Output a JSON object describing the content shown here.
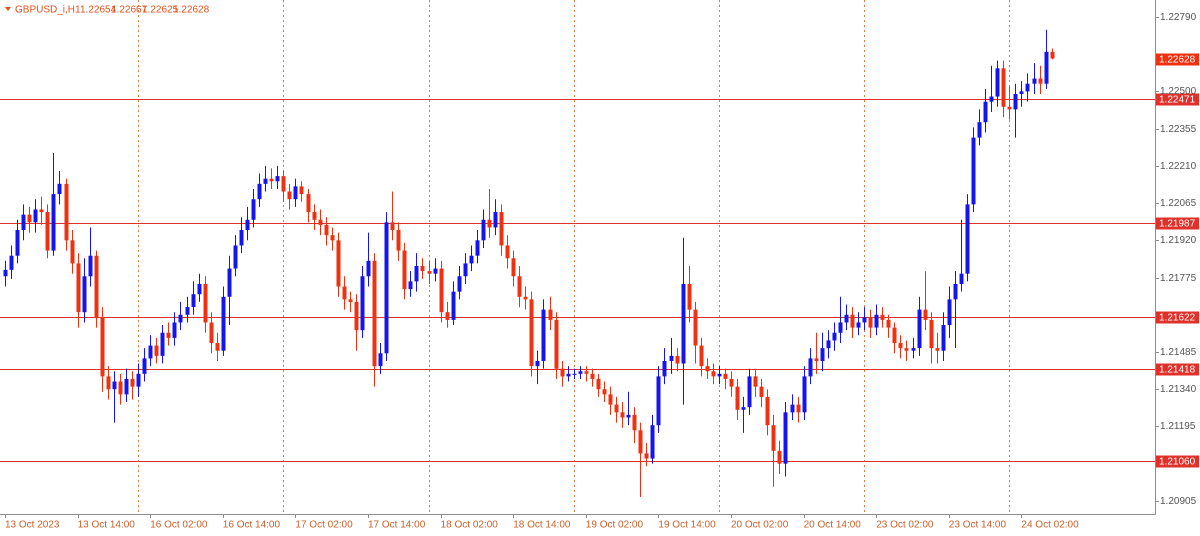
{
  "chart_data": {
    "type": "candlestick",
    "title": "GBPUSD_i,H1",
    "up_color": "#1414f0",
    "down_color": "#f0300f",
    "level_color": "#e0302a",
    "levels": [
      {
        "value": 1.22471,
        "label": "1.22471"
      },
      {
        "value": 1.21987,
        "label": "1.21987"
      },
      {
        "value": 1.21622,
        "label": "1.21622"
      },
      {
        "value": 1.21418,
        "label": "1.21418"
      },
      {
        "value": 1.2106,
        "label": "1.21060"
      }
    ],
    "ylim": [
      1.20854,
      1.22856
    ],
    "yticks": [
      {
        "value": 1.2279,
        "label": "1.22790"
      },
      {
        "value": 1.225,
        "label": "1.22500"
      },
      {
        "value": 1.22355,
        "label": "1.22355"
      },
      {
        "value": 1.2221,
        "label": "1.22210"
      },
      {
        "value": 1.22065,
        "label": "1.22065"
      },
      {
        "value": 1.2192,
        "label": "1.21920"
      },
      {
        "value": 1.21775,
        "label": "1.21775"
      },
      {
        "value": 1.21485,
        "label": "1.21485"
      },
      {
        "value": 1.2134,
        "label": "1.21340"
      },
      {
        "value": 1.21195,
        "label": "1.21195"
      },
      {
        "value": 1.20905,
        "label": "1.20905"
      }
    ],
    "categories": [
      "13 Oct 2023",
      null,
      null,
      null,
      null,
      null,
      null,
      null,
      null,
      null,
      null,
      null,
      "13 Oct 14:00",
      null,
      null,
      null,
      null,
      null,
      null,
      null,
      null,
      null,
      null,
      null,
      "16 Oct 02:00",
      null,
      null,
      null,
      null,
      null,
      null,
      null,
      null,
      null,
      null,
      null,
      "16 Oct 14:00",
      null,
      null,
      null,
      null,
      null,
      null,
      null,
      null,
      null,
      null,
      null,
      "17 Oct 02:00",
      null,
      null,
      null,
      null,
      null,
      null,
      null,
      null,
      null,
      null,
      null,
      "17 Oct 14:00",
      null,
      null,
      null,
      null,
      null,
      null,
      null,
      null,
      null,
      null,
      null,
      "18 Oct 02:00",
      null,
      null,
      null,
      null,
      null,
      null,
      null,
      null,
      null,
      null,
      null,
      "18 Oct 14:00",
      null,
      null,
      null,
      null,
      null,
      null,
      null,
      null,
      null,
      null,
      null,
      "19 Oct 02:00",
      null,
      null,
      null,
      null,
      null,
      null,
      null,
      null,
      null,
      null,
      null,
      "19 Oct 14:00",
      null,
      null,
      null,
      null,
      null,
      null,
      null,
      null,
      null,
      null,
      null,
      "20 Oct 02:00",
      null,
      null,
      null,
      null,
      null,
      null,
      null,
      null,
      null,
      null,
      null,
      "20 Oct 14:00",
      null,
      null,
      null,
      null,
      null,
      null,
      null,
      null,
      null,
      null,
      null,
      "23 Oct 02:00",
      null,
      null,
      null,
      null,
      null,
      null,
      null,
      null,
      null,
      null,
      null,
      "23 Oct 14:00",
      null,
      null,
      null,
      null,
      null,
      null,
      null,
      null,
      null,
      null,
      null,
      "24 Oct 02:00",
      null,
      null,
      null,
      null,
      null
    ],
    "open": [
      1.2178,
      1.21805,
      1.2186,
      1.2196,
      1.2202,
      1.2199,
      1.2204,
      1.2203,
      1.2188,
      1.221,
      1.2214,
      1.2192,
      1.2183,
      1.2164,
      1.2178,
      1.2186,
      1.2162,
      1.2139,
      1.2134,
      1.2137,
      1.2132,
      1.2138,
      1.2135,
      1.214,
      1.2146,
      1.2151,
      1.2147,
      1.2156,
      1.2154,
      1.216,
      1.2163,
      1.2166,
      1.2171,
      1.2175,
      1.216,
      1.2152,
      1.2149,
      1.217,
      1.2181,
      1.219,
      1.2196,
      1.22,
      1.2208,
      1.2214,
      1.2216,
      1.2215,
      1.2217,
      1.2211,
      1.2208,
      1.2213,
      1.221,
      1.2203,
      1.22,
      1.2198,
      1.2194,
      1.2192,
      1.2174,
      1.2169,
      1.2168,
      1.2157,
      1.2178,
      1.2184,
      1.2143,
      1.2148,
      1.2199,
      1.2196,
      1.2188,
      1.2173,
      1.2176,
      1.2182,
      1.218,
      1.2179,
      1.2181,
      1.2164,
      1.2161,
      1.2172,
      1.2178,
      1.2183,
      1.2186,
      1.2192,
      1.22,
      1.2197,
      1.2203,
      1.219,
      1.2185,
      1.2178,
      1.217,
      1.2169,
      1.2143,
      1.2145,
      1.2165,
      1.2161,
      1.2142,
      1.2139,
      1.214,
      1.214,
      1.2141,
      1.214,
      1.2138,
      1.2134,
      1.2132,
      1.2128,
      1.2125,
      1.2123,
      1.2124,
      1.2118,
      1.2109,
      1.2107,
      1.212,
      1.2139,
      1.2145,
      1.2147,
      1.2144,
      1.2175,
      1.2165,
      1.2151,
      1.2143,
      1.2141,
      1.2139,
      1.214,
      1.2138,
      1.2135,
      1.2126,
      1.2127,
      1.2139,
      1.2135,
      1.2131,
      1.212,
      1.211,
      1.2105,
      1.2125,
      1.2128,
      1.2125,
      1.2139,
      1.2146,
      1.2145,
      1.215,
      1.2153,
      1.2156,
      1.216,
      1.2163,
      1.2158,
      1.216,
      1.2162,
      1.2158,
      1.2163,
      1.2161,
      1.2158,
      1.2152,
      1.215,
      1.2149,
      1.215,
      1.2165,
      1.2161,
      1.215,
      1.2149,
      1.2159,
      1.2169,
      1.2175,
      1.2179,
      1.2206,
      1.2232,
      1.2238,
      1.2246,
      1.2248,
      1.2259,
      1.2244,
      1.2243,
      1.2249,
      1.225,
      1.2253,
      1.2255,
      1.2253,
      1.22654
    ],
    "high": [
      1.2184,
      1.219,
      1.22,
      1.2206,
      1.2205,
      1.2208,
      1.2209,
      1.2206,
      1.2226,
      1.2219,
      1.2216,
      1.2196,
      1.2187,
      1.2185,
      1.2197,
      1.2188,
      1.2166,
      1.2143,
      1.2141,
      1.214,
      1.2142,
      1.2141,
      1.2144,
      1.215,
      1.2155,
      1.2154,
      1.2159,
      1.216,
      1.2164,
      1.2168,
      1.217,
      1.2176,
      1.2179,
      1.2178,
      1.2164,
      1.2156,
      1.2174,
      1.2186,
      1.2194,
      1.2201,
      1.2205,
      1.2212,
      1.2218,
      1.2221,
      1.222,
      1.2221,
      1.2219,
      1.2214,
      1.2216,
      1.2215,
      1.2212,
      1.2206,
      1.2204,
      1.2201,
      1.2197,
      1.2195,
      1.2178,
      1.2172,
      1.2171,
      1.2182,
      1.2195,
      1.2187,
      1.2152,
      1.2203,
      1.2211,
      1.2199,
      1.2191,
      1.218,
      1.2187,
      1.2185,
      1.2184,
      1.2185,
      1.2184,
      1.2168,
      1.2176,
      1.2182,
      1.2187,
      1.219,
      1.2196,
      1.2204,
      1.2212,
      1.2208,
      1.2206,
      1.2194,
      1.2188,
      1.2182,
      1.2174,
      1.2172,
      1.2149,
      1.2169,
      1.217,
      1.2164,
      1.2145,
      1.2143,
      1.2142,
      1.2143,
      1.2143,
      1.2142,
      1.214,
      1.2137,
      1.2135,
      1.2131,
      1.2129,
      1.2133,
      1.2127,
      1.2121,
      1.2113,
      1.2124,
      1.2143,
      1.215,
      1.2154,
      1.215,
      1.2193,
      1.2182,
      1.2168,
      1.2154,
      1.2146,
      1.2144,
      1.2143,
      1.2142,
      1.2141,
      1.2138,
      1.2131,
      1.2142,
      1.2142,
      1.2138,
      1.2134,
      1.2124,
      1.2114,
      1.2129,
      1.2132,
      1.2131,
      1.2143,
      1.215,
      1.2156,
      1.2156,
      1.2157,
      1.216,
      1.217,
      1.2167,
      1.2166,
      1.2164,
      1.2166,
      1.2165,
      1.2167,
      1.2166,
      1.2163,
      1.216,
      1.2155,
      1.2153,
      1.2154,
      1.217,
      1.218,
      1.2164,
      1.2156,
      1.2164,
      1.2174,
      1.218,
      1.22,
      1.221,
      1.2236,
      1.2243,
      1.2251,
      1.226,
      1.2262,
      1.2262,
      1.2252,
      1.2253,
      1.2254,
      1.2257,
      1.2261,
      1.226,
      1.2274,
      1.22667
    ],
    "low": [
      1.2174,
      1.2177,
      1.2183,
      1.2192,
      1.2195,
      1.2195,
      1.2198,
      1.2185,
      1.2186,
      1.2206,
      1.2188,
      1.2179,
      1.2158,
      1.216,
      1.2174,
      1.2158,
      1.2133,
      1.213,
      1.2121,
      1.2128,
      1.2129,
      1.213,
      1.2131,
      1.2137,
      1.2143,
      1.2144,
      1.2144,
      1.2151,
      1.2151,
      1.2157,
      1.216,
      1.2163,
      1.2168,
      1.2156,
      1.2148,
      1.2145,
      1.2147,
      1.2159,
      1.2178,
      1.2187,
      1.2192,
      1.2197,
      1.2205,
      1.2211,
      1.2212,
      1.2212,
      1.2207,
      1.2204,
      1.2205,
      1.2207,
      1.2199,
      1.2196,
      1.2194,
      1.219,
      1.2188,
      1.217,
      1.2165,
      1.2164,
      1.2149,
      1.2154,
      1.2174,
      1.2135,
      1.214,
      1.2145,
      1.2192,
      1.2184,
      1.2169,
      1.217,
      1.2172,
      1.2177,
      1.2175,
      1.2176,
      1.216,
      1.2158,
      1.2159,
      1.2169,
      1.2175,
      1.218,
      1.2183,
      1.2189,
      1.2193,
      1.2194,
      1.2186,
      1.2181,
      1.2174,
      1.2166,
      1.2165,
      1.2139,
      1.2136,
      1.2142,
      1.2157,
      1.2138,
      1.2135,
      1.2137,
      1.2138,
      1.2138,
      1.2137,
      1.2135,
      1.2131,
      1.2129,
      1.2124,
      1.2121,
      1.2119,
      1.212,
      1.2113,
      1.2092,
      1.2104,
      1.2105,
      1.2117,
      1.2136,
      1.214,
      1.2141,
      1.2128,
      1.216,
      1.2144,
      1.2139,
      1.2138,
      1.2136,
      1.2136,
      1.2134,
      1.2131,
      1.2122,
      1.2117,
      1.2124,
      1.2131,
      1.2127,
      1.2116,
      1.2096,
      1.2101,
      1.21,
      1.2122,
      1.2121,
      1.2122,
      1.2136,
      1.214,
      1.2141,
      1.2146,
      1.2149,
      1.2152,
      1.2157,
      1.2154,
      1.2155,
      1.2157,
      1.2154,
      1.2155,
      1.2158,
      1.2154,
      1.2148,
      1.2146,
      1.2145,
      1.2146,
      1.2147,
      1.2157,
      1.2144,
      1.2144,
      1.2145,
      1.2154,
      1.215,
      1.2172,
      1.2176,
      1.2203,
      1.2229,
      1.2234,
      1.2242,
      1.2244,
      1.224,
      1.2239,
      1.2232,
      1.2244,
      1.2246,
      1.2249,
      1.2249,
      1.2251,
      1.22625
    ],
    "close": [
      1.21805,
      1.2186,
      1.2196,
      1.2202,
      1.2199,
      1.2204,
      1.2203,
      1.2188,
      1.221,
      1.2214,
      1.2192,
      1.2183,
      1.2164,
      1.2178,
      1.2186,
      1.2162,
      1.2139,
      1.2134,
      1.2137,
      1.2132,
      1.2138,
      1.2135,
      1.214,
      1.2146,
      1.2151,
      1.2147,
      1.2156,
      1.2154,
      1.216,
      1.2163,
      1.2166,
      1.2171,
      1.2175,
      1.216,
      1.2152,
      1.2149,
      1.217,
      1.2181,
      1.219,
      1.2196,
      1.22,
      1.2208,
      1.2214,
      1.2216,
      1.2215,
      1.2217,
      1.2211,
      1.2208,
      1.2213,
      1.221,
      1.2203,
      1.22,
      1.2198,
      1.2194,
      1.2192,
      1.2174,
      1.2169,
      1.2168,
      1.2157,
      1.2178,
      1.2184,
      1.2143,
      1.2148,
      1.2199,
      1.2196,
      1.2188,
      1.2173,
      1.2176,
      1.2182,
      1.218,
      1.2179,
      1.2181,
      1.2164,
      1.2161,
      1.2172,
      1.2178,
      1.2183,
      1.2186,
      1.2192,
      1.22,
      1.2197,
      1.2203,
      1.219,
      1.2185,
      1.2178,
      1.217,
      1.2169,
      1.2143,
      1.2145,
      1.2165,
      1.2161,
      1.2142,
      1.2139,
      1.214,
      1.214,
      1.2141,
      1.214,
      1.2138,
      1.2134,
      1.2132,
      1.2128,
      1.2125,
      1.2123,
      1.2124,
      1.2118,
      1.2109,
      1.2107,
      1.212,
      1.2139,
      1.2145,
      1.2147,
      1.2144,
      1.2175,
      1.2165,
      1.2151,
      1.2143,
      1.2141,
      1.2139,
      1.214,
      1.2138,
      1.2135,
      1.2126,
      1.2127,
      1.2139,
      1.2135,
      1.2131,
      1.212,
      1.211,
      1.2105,
      1.2125,
      1.2128,
      1.2125,
      1.2139,
      1.2146,
      1.2145,
      1.215,
      1.2153,
      1.2156,
      1.216,
      1.2163,
      1.2158,
      1.216,
      1.2162,
      1.2158,
      1.2163,
      1.2161,
      1.2158,
      1.2152,
      1.215,
      1.2149,
      1.215,
      1.2165,
      1.2161,
      1.215,
      1.2149,
      1.2159,
      1.2169,
      1.2175,
      1.2179,
      1.2206,
      1.2232,
      1.2238,
      1.2246,
      1.2248,
      1.2259,
      1.2244,
      1.2243,
      1.2249,
      1.225,
      1.2253,
      1.2255,
      1.2253,
      1.22654,
      1.22628
    ]
  }
}
